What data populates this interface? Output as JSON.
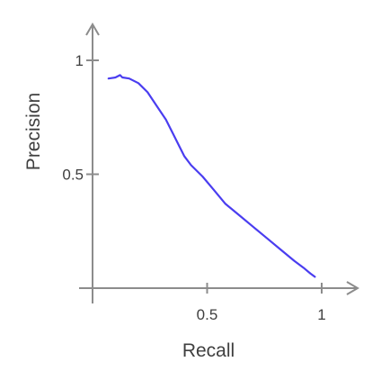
{
  "chart_data": {
    "type": "line",
    "title": "",
    "xlabel": "Recall",
    "ylabel": "Precision",
    "xlim": [
      0,
      1.1
    ],
    "ylim": [
      -0.05,
      1.12
    ],
    "xticks": [
      {
        "value": 0.5,
        "label": "0.5"
      },
      {
        "value": 1,
        "label": "1"
      }
    ],
    "yticks": [
      {
        "value": 0.5,
        "label": "0.5"
      },
      {
        "value": 1,
        "label": "1"
      }
    ],
    "grid": false,
    "series": [
      {
        "color": "#4a3df0",
        "x": [
          0.07,
          0.1,
          0.12,
          0.13,
          0.16,
          0.2,
          0.24,
          0.28,
          0.32,
          0.35,
          0.38,
          0.4,
          0.43,
          0.48,
          0.53,
          0.58,
          0.64,
          0.7,
          0.76,
          0.82,
          0.88,
          0.92,
          0.95,
          0.97
        ],
        "y": [
          0.92,
          0.925,
          0.935,
          0.925,
          0.92,
          0.9,
          0.86,
          0.8,
          0.74,
          0.68,
          0.62,
          0.58,
          0.54,
          0.49,
          0.43,
          0.37,
          0.32,
          0.27,
          0.22,
          0.17,
          0.12,
          0.09,
          0.065,
          0.05
        ]
      }
    ]
  }
}
